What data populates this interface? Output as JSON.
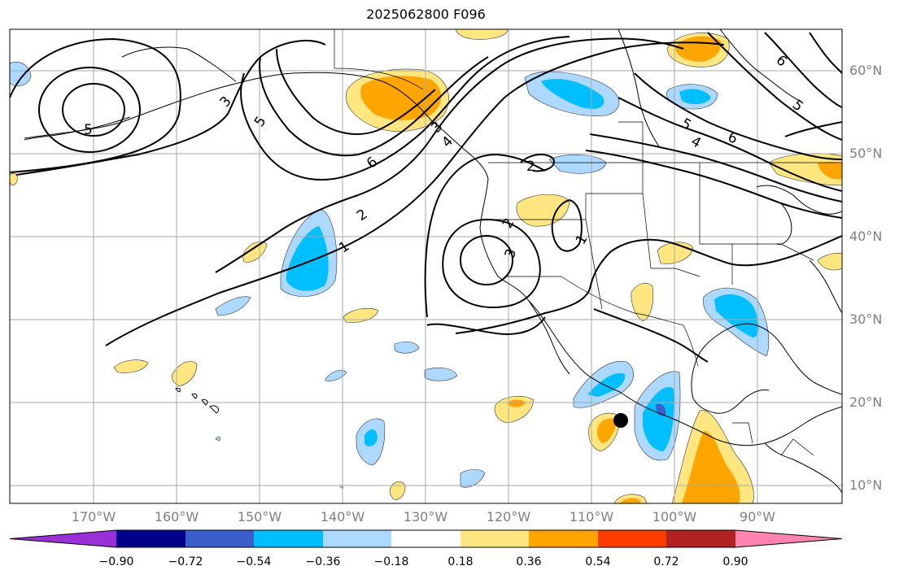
{
  "title": "2025062800 F096",
  "lat_labels": [
    "60°N",
    "50°N",
    "40°N",
    "30°N",
    "20°N",
    "10°N"
  ],
  "lon_labels": [
    "170°W",
    "160°W",
    "150°W",
    "140°W",
    "130°W",
    "120°W",
    "110°W",
    "100°W",
    "90°W"
  ],
  "contour_labels": [
    "5",
    "3",
    "5",
    "6",
    "2",
    "1",
    "3",
    "2",
    "1",
    "3",
    "4",
    "5",
    "6",
    "4",
    "5",
    "2",
    "6"
  ],
  "colorbar": {
    "labels": [
      "−0.90",
      "−0.72",
      "−0.54",
      "−0.36",
      "−0.18",
      "0.18",
      "0.36",
      "0.54",
      "0.72",
      "0.90"
    ],
    "colors": [
      "#9b30d8",
      "#00008b",
      "#3a5fcd",
      "#00bfff",
      "#add8ff",
      "#ffffff",
      "#ffe680",
      "#ffa500",
      "#ff3c00",
      "#b22222",
      "#ff85b0"
    ]
  },
  "marker": "station-dot"
}
